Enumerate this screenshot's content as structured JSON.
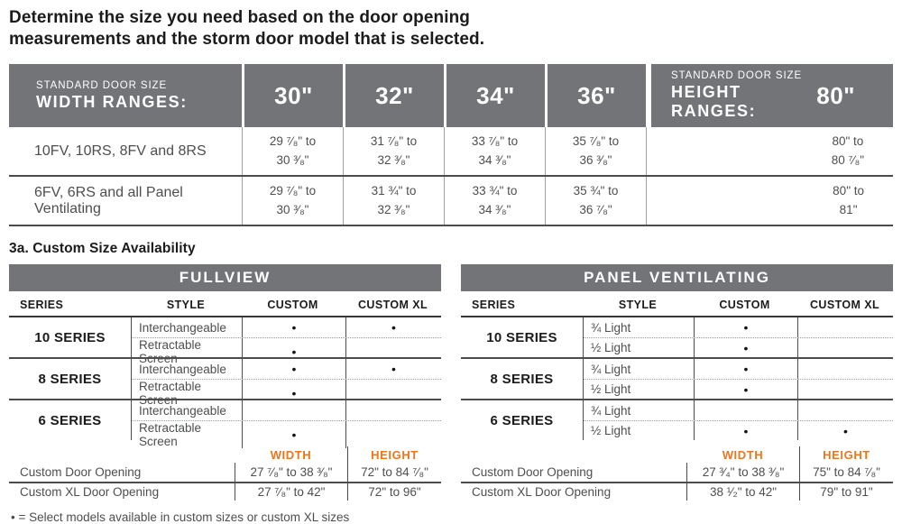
{
  "title": "Determine the size you need based on the door opening\nmeasurements and the storm door model that is selected.",
  "colors": {
    "header_gray": "#737477",
    "accent_orange": "#e87722"
  },
  "size_table": {
    "width_header": {
      "line1": "STANDARD DOOR SIZE",
      "line2": "WIDTH RANGES:"
    },
    "width_columns": [
      "30\"",
      "32\"",
      "34\"",
      "36\""
    ],
    "height_header": {
      "line1": "STANDARD DOOR SIZE",
      "line2": "HEIGHT RANGES:",
      "value": "80\""
    },
    "rows": [
      {
        "label": "10FV, 10RS, 8FV and 8RS",
        "widths": [
          "29 ⁷⁄₈\" to\n30 ³⁄₈\"",
          "31 ⁷⁄₈\" to\n32 ³⁄₈\"",
          "33 ⁷⁄₈\" to\n34 ³⁄₈\"",
          "35 ⁷⁄₈\" to\n36 ³⁄₈\""
        ],
        "height": "80\" to\n80 ⁷⁄₈\""
      },
      {
        "label": "6FV, 6RS and all Panel Ventilating",
        "widths": [
          "29 ⁷⁄₈\" to\n30 ³⁄₈\"",
          "31 ¾\" to\n32 ³⁄₈\"",
          "33 ¾\" to\n34 ³⁄₈\"",
          "35 ¾\" to\n36 ⁷⁄₈\""
        ],
        "height": "80\" to\n81\""
      }
    ]
  },
  "custom_heading": "3a. Custom Size Availability",
  "fullview": {
    "title": "FULLVIEW",
    "columns": [
      "SERIES",
      "STYLE",
      "CUSTOM",
      "CUSTOM XL"
    ],
    "groups": [
      {
        "series": "10 SERIES",
        "rows": [
          {
            "style": "Interchangeable",
            "custom": "•",
            "custom_xl": "•"
          },
          {
            "style": "Retractable Screen",
            "custom": "•",
            "custom_xl": ""
          }
        ]
      },
      {
        "series": "8 SERIES",
        "rows": [
          {
            "style": "Interchangeable",
            "custom": "•",
            "custom_xl": "•"
          },
          {
            "style": "Retractable Screen",
            "custom": "•",
            "custom_xl": ""
          }
        ]
      },
      {
        "series": "6 SERIES",
        "rows": [
          {
            "style": "Interchangeable",
            "custom": "",
            "custom_xl": ""
          },
          {
            "style": "Retractable Screen",
            "custom": "•",
            "custom_xl": ""
          }
        ]
      }
    ],
    "opening": {
      "width_label": "WIDTH",
      "height_label": "HEIGHT",
      "rows": [
        {
          "label": "Custom Door Opening",
          "width": "27 ⁷⁄₈\" to 38 ³⁄₈\"",
          "height": "72\" to 84 ⁷⁄₈\""
        },
        {
          "label": "Custom XL Door Opening",
          "width": "27 ⁷⁄₈\" to 42\"",
          "height": "72\" to 96\""
        }
      ]
    }
  },
  "panel": {
    "title": "PANEL VENTILATING",
    "columns": [
      "SERIES",
      "STYLE",
      "CUSTOM",
      "CUSTOM XL"
    ],
    "groups": [
      {
        "series": "10 SERIES",
        "rows": [
          {
            "style": "¾ Light",
            "custom": "•",
            "custom_xl": ""
          },
          {
            "style": "½ Light",
            "custom": "•",
            "custom_xl": ""
          }
        ]
      },
      {
        "series": "8 SERIES",
        "rows": [
          {
            "style": "¾ Light",
            "custom": "•",
            "custom_xl": ""
          },
          {
            "style": "½ Light",
            "custom": "•",
            "custom_xl": ""
          }
        ]
      },
      {
        "series": "6 SERIES",
        "rows": [
          {
            "style": "¾ Light",
            "custom": "",
            "custom_xl": ""
          },
          {
            "style": "½ Light",
            "custom": "•",
            "custom_xl": "•"
          }
        ]
      }
    ],
    "opening": {
      "width_label": "WIDTH",
      "height_label": "HEIGHT",
      "rows": [
        {
          "label": "Custom Door Opening",
          "width": "27 ³⁄₄\" to 38 ³⁄₈\"",
          "height": "75\" to 84 ⁷⁄₈\""
        },
        {
          "label": "Custom XL Door Opening",
          "width": "38 ¹⁄₂\" to 42\"",
          "height": "79\" to 91\""
        }
      ]
    }
  },
  "footnote": "• = Select models available in custom sizes or custom XL sizes"
}
